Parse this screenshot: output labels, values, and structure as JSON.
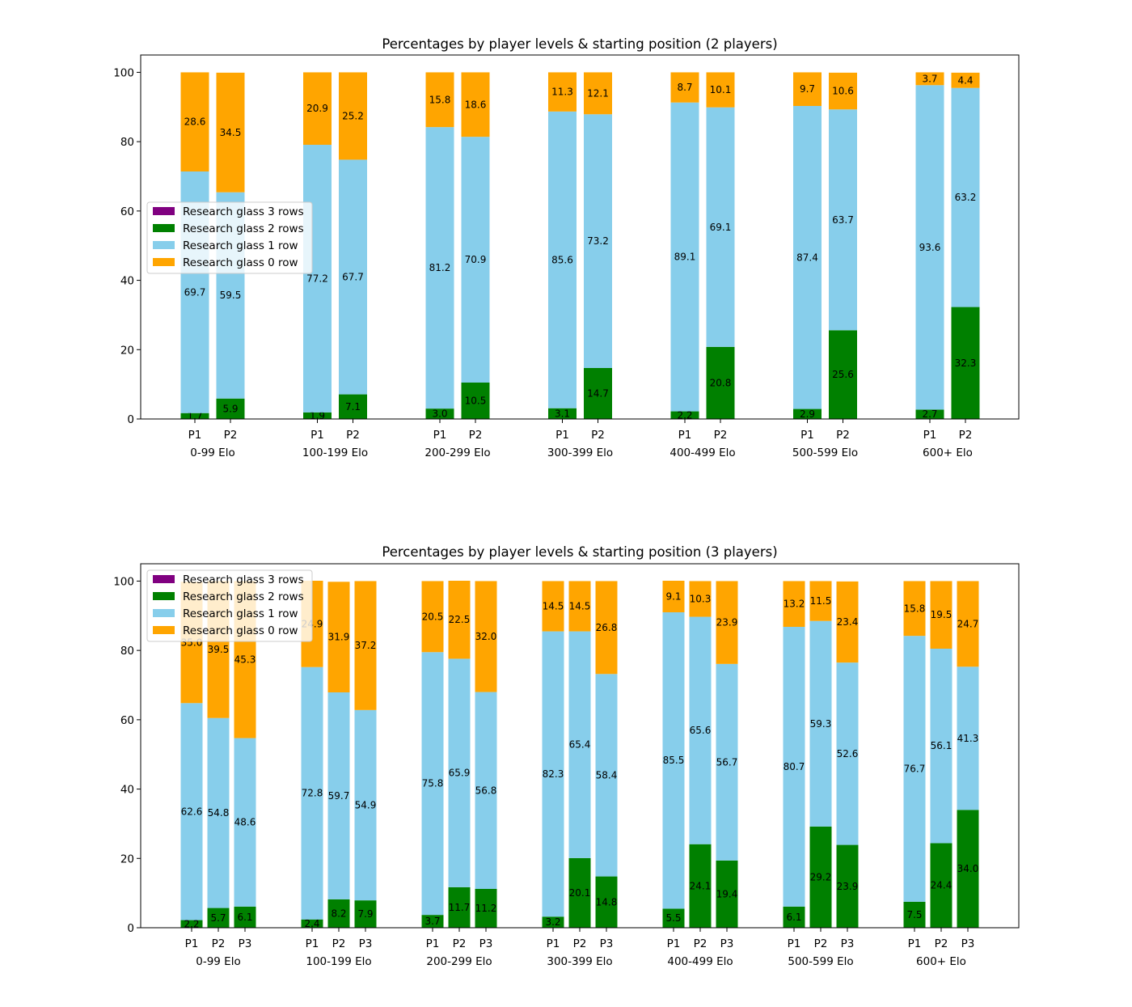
{
  "chart_data": [
    {
      "type": "bar",
      "stacked": true,
      "title": "Percentages by player levels & starting position (2 players)",
      "groups": [
        "0-99 Elo",
        "100-199 Elo",
        "200-299 Elo",
        "300-399 Elo",
        "400-499 Elo",
        "500-599 Elo",
        "600+ Elo"
      ],
      "positions": [
        "P1",
        "P2"
      ],
      "series": [
        {
          "name": "Research glass 2 rows",
          "color": "#008000",
          "values": [
            [
              1.7,
              5.9
            ],
            [
              1.9,
              7.1
            ],
            [
              3.0,
              10.5
            ],
            [
              3.1,
              14.7
            ],
            [
              2.2,
              20.8
            ],
            [
              2.9,
              25.6
            ],
            [
              2.7,
              32.3
            ]
          ]
        },
        {
          "name": "Research glass 1 row",
          "color": "#87ceeb",
          "values": [
            [
              69.7,
              59.5
            ],
            [
              77.2,
              67.7
            ],
            [
              81.2,
              70.9
            ],
            [
              85.6,
              73.2
            ],
            [
              89.1,
              69.1
            ],
            [
              87.4,
              63.7
            ],
            [
              93.6,
              63.2
            ]
          ]
        },
        {
          "name": "Research glass 0 row",
          "color": "#ffa500",
          "values": [
            [
              28.6,
              34.5
            ],
            [
              20.9,
              25.2
            ],
            [
              15.8,
              18.6
            ],
            [
              11.3,
              12.1
            ],
            [
              8.7,
              10.1
            ],
            [
              9.7,
              10.6
            ],
            [
              3.7,
              4.4
            ]
          ]
        }
      ],
      "legend": [
        {
          "name": "Research glass 3 rows",
          "color": "#800080"
        },
        {
          "name": "Research glass 2 rows",
          "color": "#008000"
        },
        {
          "name": "Research glass 1 row",
          "color": "#87ceeb"
        },
        {
          "name": "Research glass 0 row",
          "color": "#ffa500"
        }
      ],
      "legend_position": "center-left",
      "yticks": [
        "0",
        "20",
        "40",
        "60",
        "80",
        "100"
      ],
      "ylim": [
        0,
        105
      ],
      "grid": false
    },
    {
      "type": "bar",
      "stacked": true,
      "title": "Percentages by player levels & starting position (3 players)",
      "groups": [
        "0-99 Elo",
        "100-199 Elo",
        "200-299 Elo",
        "300-399 Elo",
        "400-499 Elo",
        "500-599 Elo",
        "600+ Elo"
      ],
      "positions": [
        "P1",
        "P2",
        "P3"
      ],
      "series": [
        {
          "name": "Research glass 2 rows",
          "color": "#008000",
          "values": [
            [
              2.2,
              5.7,
              6.1
            ],
            [
              2.4,
              8.2,
              7.9
            ],
            [
              3.7,
              11.7,
              11.2
            ],
            [
              3.2,
              20.1,
              14.8
            ],
            [
              5.5,
              24.1,
              19.4
            ],
            [
              6.1,
              29.2,
              23.9
            ],
            [
              7.5,
              24.4,
              34.0
            ]
          ]
        },
        {
          "name": "Research glass 1 row",
          "color": "#87ceeb",
          "values": [
            [
              62.6,
              54.8,
              48.6
            ],
            [
              72.8,
              59.7,
              54.9
            ],
            [
              75.8,
              65.9,
              56.8
            ],
            [
              82.3,
              65.4,
              58.4
            ],
            [
              85.5,
              65.6,
              56.7
            ],
            [
              80.7,
              59.3,
              52.6
            ],
            [
              76.7,
              56.1,
              41.3
            ]
          ]
        },
        {
          "name": "Research glass 0 row",
          "color": "#ffa500",
          "values": [
            [
              35.0,
              39.5,
              45.3
            ],
            [
              24.9,
              31.9,
              37.2
            ],
            [
              20.5,
              22.5,
              32.0
            ],
            [
              14.5,
              14.5,
              26.8
            ],
            [
              9.1,
              10.3,
              23.9
            ],
            [
              13.2,
              11.5,
              23.4
            ],
            [
              15.8,
              19.5,
              24.7
            ]
          ]
        }
      ],
      "legend": [
        {
          "name": "Research glass 3 rows",
          "color": "#800080"
        },
        {
          "name": "Research glass 2 rows",
          "color": "#008000"
        },
        {
          "name": "Research glass 1 row",
          "color": "#87ceeb"
        },
        {
          "name": "Research glass 0 row",
          "color": "#ffa500"
        }
      ],
      "legend_position": "upper-left",
      "yticks": [
        "0",
        "20",
        "40",
        "60",
        "80",
        "100"
      ],
      "ylim": [
        0,
        105
      ],
      "grid": false
    }
  ]
}
